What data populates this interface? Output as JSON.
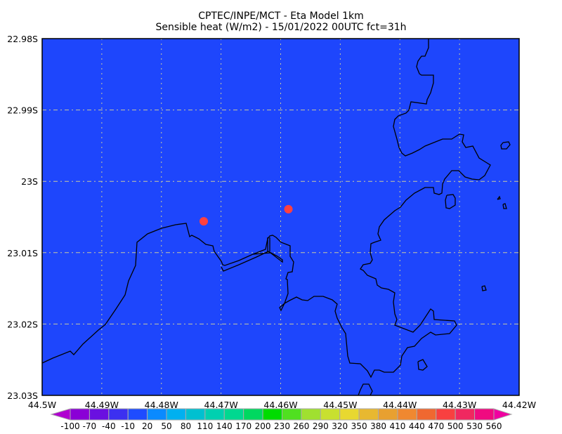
{
  "title": {
    "line1": "CPTEC/INPE/MCT -  Eta Model 1km",
    "line2": "Sensible heat (W/m2) - 15/01/2022 00UTC fct=31h"
  },
  "map": {
    "lon_range": [
      -44.5,
      -44.42
    ],
    "lat_range": [
      -23.03,
      -22.98
    ],
    "field_color": "#1e46fc",
    "coast_color": "#000000",
    "grid": true,
    "grid_color": "#c8c8a0",
    "x_ticks": [
      "44.5W",
      "44.49W",
      "44.48W",
      "44.47W",
      "44.46W",
      "44.45W",
      "44.44W",
      "44.43W",
      "44.42W"
    ],
    "y_ticks": [
      "22.98S",
      "22.99S",
      "23S",
      "23.01S",
      "23.02S",
      "23.03S"
    ],
    "markers": [
      {
        "lon": -44.4729,
        "lat": -23.0056,
        "color": "#ff4040"
      },
      {
        "lon": -44.4587,
        "lat": -23.0039,
        "color": "#ff4040"
      }
    ]
  },
  "colorbar": {
    "labels": [
      "-100",
      "-70",
      "-40",
      "-10",
      "20",
      "50",
      "80",
      "110",
      "140",
      "170",
      "200",
      "230",
      "260",
      "290",
      "320",
      "350",
      "380",
      "410",
      "440",
      "470",
      "500",
      "530",
      "560"
    ],
    "colors": [
      "#8a00d6",
      "#6a10e0",
      "#3c30f0",
      "#1e4cff",
      "#0a8aff",
      "#00b0f0",
      "#00c0d0",
      "#00d0b0",
      "#00d890",
      "#00d860",
      "#00dc00",
      "#50e020",
      "#a0e030",
      "#c8e030",
      "#e8d830",
      "#e8b830",
      "#e8a030",
      "#f08830",
      "#f06830",
      "#f84040",
      "#f02860",
      "#f00a80"
    ],
    "under_color": "#b000d0",
    "over_color": "#f000a0"
  }
}
